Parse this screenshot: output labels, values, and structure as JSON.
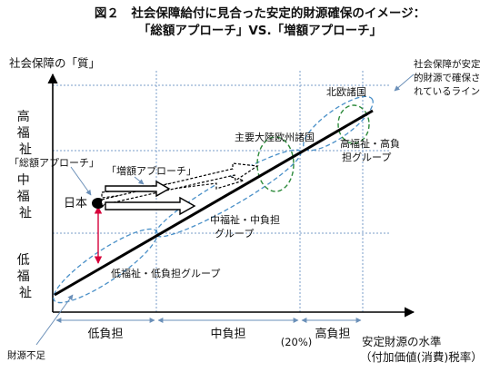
{
  "title": {
    "line1": "図２　社会保障給付に見合った安定的財源確保のイメージ：",
    "line2": "「総額アプローチ」VS.「増額アプローチ」"
  },
  "y_axis": {
    "label": "社会保障の「質」",
    "high": "高福祉",
    "mid": "中福祉",
    "low": "低福祉"
  },
  "x_axis": {
    "label_line1": "安定財源の水準",
    "label_line2": "（付加価値(消費)税率）",
    "segments": [
      "低負担",
      "中負担",
      "高負担"
    ],
    "marker": "(20%)"
  },
  "callouts": {
    "stable_line": [
      "社会保障が安定",
      "的財源で確保さ",
      "れているライン"
    ],
    "northern_europe": "北欧諸国",
    "continental_europe": "主要大陸欧州諸国",
    "high_group": [
      "高福祉・高負",
      "担グループ"
    ],
    "mid_group": [
      "中福祉・中負担",
      "グループ"
    ],
    "low_group": "低福祉・低負担グループ",
    "japan": "日本",
    "total_approach": "「総額アプローチ」",
    "increase_approach": "「増額アプローチ」",
    "fiscal_shortfall": "財源不足"
  },
  "colors": {
    "stable_line": "#000000",
    "ellipse_blue": "#4a90c8",
    "ellipse_green": "#2e8b3c",
    "grid": "#7a9cc8",
    "japan_arrow": "#d6003a",
    "axis": "#000000"
  }
}
